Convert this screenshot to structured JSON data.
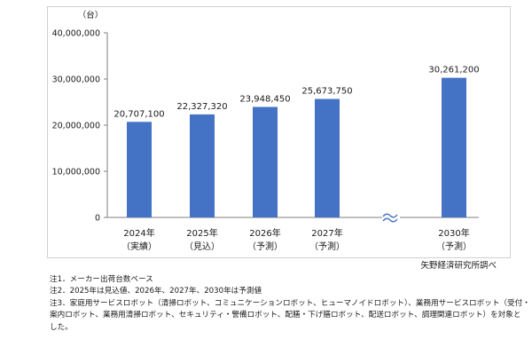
{
  "chart_data": {
    "type": "bar",
    "unit_label": "（台）",
    "categories": [
      {
        "year": "2024年",
        "status": "（実績）",
        "value": 20707100,
        "label": "20,707,100"
      },
      {
        "year": "2025年",
        "status": "（見込）",
        "value": 22327320,
        "label": "22,327,320"
      },
      {
        "year": "2026年",
        "status": "（予測）",
        "value": 23948450,
        "label": "23,948,450"
      },
      {
        "year": "2027年",
        "status": "（予測）",
        "value": 25673750,
        "label": "25,673,750"
      },
      {
        "year": "2030年",
        "status": "（予測）",
        "value": 30261200,
        "label": "30,261,200"
      }
    ],
    "y_ticks": [
      {
        "value": 0,
        "label": "0"
      },
      {
        "value": 10000000,
        "label": "10,000,000"
      },
      {
        "value": 20000000,
        "label": "20,000,000"
      },
      {
        "value": 30000000,
        "label": "30,000,000"
      },
      {
        "value": 40000000,
        "label": "40,000,000"
      }
    ],
    "ylim": [
      0,
      40000000
    ],
    "axis_break": "≈",
    "bar_color": "#4472c4",
    "grid": false,
    "legend": "none"
  },
  "source": "矢野経済研究所調べ",
  "notes": [
    "注1．メーカー出荷台数ベース",
    "注2．2025年は見込値、2026年、2027年、2030年は予測値",
    "注3．家庭用サービスロボット（清掃ロボット、コミュニケーションロボット、ヒューマノイドロボット）、業務用サービスロボット（受付・",
    "案内ロボット、業務用清掃ロボット、セキュリティ・警備ロボット、配膳・下げ膳ロボット、配送ロボット、調理関連ロボット）を対象と",
    "した。"
  ]
}
